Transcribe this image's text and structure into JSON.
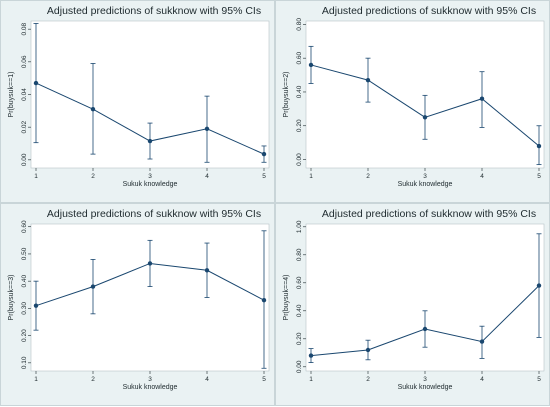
{
  "chart_data": [
    {
      "type": "line",
      "title": "Adjusted predictions of sukknow with 95% CIs",
      "xlabel": "Sukuk knowledge",
      "ylabel": "Pr(buysuk==1)",
      "x": [
        1,
        2,
        3,
        4,
        5
      ],
      "xticks": [
        "1",
        "2",
        "3",
        "4",
        "5"
      ],
      "ylim": [
        -0.005,
        0.085
      ],
      "yticks": [
        "0.00",
        "0.02",
        "0.04",
        "0.06",
        "0.08"
      ],
      "series": [
        {
          "values": [
            0.047,
            0.031,
            0.0115,
            0.019,
            0.0035
          ],
          "ci_low": [
            0.0105,
            0.0035,
            0.0005,
            -0.0015,
            -0.0015
          ],
          "ci_high": [
            0.0835,
            0.059,
            0.0225,
            0.039,
            0.0085
          ]
        }
      ]
    },
    {
      "type": "line",
      "title": "Adjusted predictions of sukknow with 95% CIs",
      "xlabel": "Sukuk knowledge",
      "ylabel": "Pr(buysuk==2)",
      "x": [
        1,
        2,
        3,
        4,
        5
      ],
      "xticks": [
        "1",
        "2",
        "3",
        "4",
        "5"
      ],
      "ylim": [
        -0.05,
        0.82
      ],
      "yticks": [
        "0.00",
        "0.20",
        "0.40",
        "0.60",
        "0.80"
      ],
      "series": [
        {
          "values": [
            0.56,
            0.47,
            0.25,
            0.36,
            0.08
          ],
          "ci_low": [
            0.45,
            0.34,
            0.12,
            0.19,
            -0.03
          ],
          "ci_high": [
            0.67,
            0.6,
            0.38,
            0.52,
            0.2
          ]
        }
      ]
    },
    {
      "type": "line",
      "title": "Adjusted predictions of sukknow with 95% CIs",
      "xlabel": "Sukuk knowledge",
      "ylabel": "Pr(buysuk==3)",
      "x": [
        1,
        2,
        3,
        4,
        5
      ],
      "xticks": [
        "1",
        "2",
        "3",
        "4",
        "5"
      ],
      "ylim": [
        0.07,
        0.61
      ],
      "yticks": [
        "0.10",
        "0.20",
        "0.30",
        "0.40",
        "0.50",
        "0.60"
      ],
      "series": [
        {
          "values": [
            0.31,
            0.38,
            0.465,
            0.44,
            0.33
          ],
          "ci_low": [
            0.22,
            0.28,
            0.38,
            0.34,
            0.08
          ],
          "ci_high": [
            0.4,
            0.48,
            0.55,
            0.54,
            0.585
          ]
        }
      ]
    },
    {
      "type": "line",
      "title": "Adjusted predictions of sukknow with 95% CIs",
      "xlabel": "Sukuk knowledge",
      "ylabel": "Pr(buysuk==4)",
      "x": [
        1,
        2,
        3,
        4,
        5
      ],
      "xticks": [
        "1",
        "2",
        "3",
        "4",
        "5"
      ],
      "ylim": [
        -0.03,
        1.02
      ],
      "yticks": [
        "0.00",
        "0.20",
        "0.40",
        "0.60",
        "0.80",
        "1.00"
      ],
      "series": [
        {
          "values": [
            0.08,
            0.12,
            0.27,
            0.18,
            0.58
          ],
          "ci_low": [
            0.03,
            0.05,
            0.14,
            0.06,
            0.21
          ],
          "ci_high": [
            0.13,
            0.19,
            0.4,
            0.29,
            0.95
          ]
        }
      ]
    }
  ],
  "colors": {
    "line": "#1a476f",
    "panel_bg": "#eaf2f3",
    "plot_bg": "#ffffff",
    "text": "#1e2a2e"
  }
}
